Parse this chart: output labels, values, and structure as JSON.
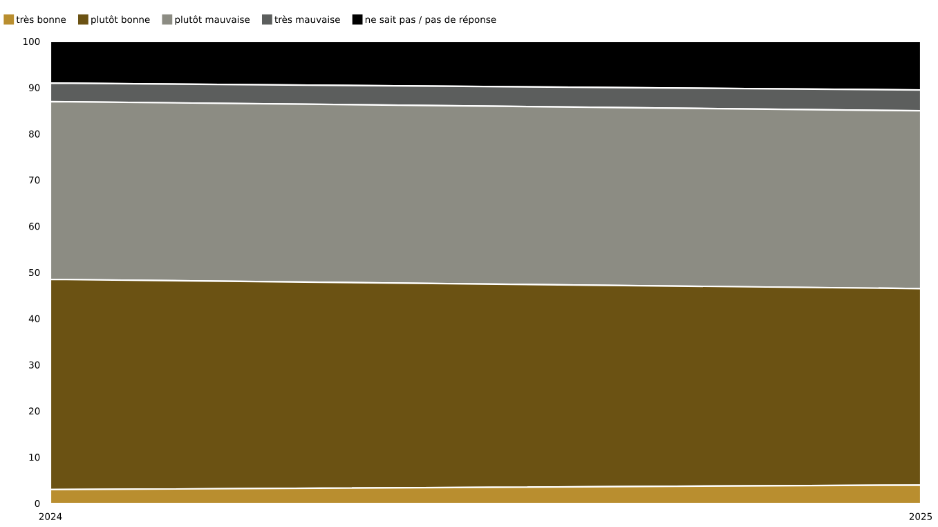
{
  "chart_data": {
    "type": "area",
    "stacked": true,
    "categories": [
      "2024",
      "2025"
    ],
    "series": [
      {
        "name": "très bonne",
        "color": "#b98e2f",
        "values": [
          3,
          4
        ]
      },
      {
        "name": "plutôt bonne",
        "color": "#6b5213",
        "values": [
          45.5,
          42.5
        ]
      },
      {
        "name": "plutôt mauvaise",
        "color": "#8c8c83",
        "values": [
          38.5,
          38.5
        ]
      },
      {
        "name": "très mauvaise",
        "color": "#5c5e5d",
        "values": [
          4,
          4.5
        ]
      },
      {
        "name": "ne sait pas / pas de réponse",
        "color": "#000000",
        "values": [
          9,
          10.5
        ]
      }
    ],
    "ylim": [
      0,
      100
    ],
    "yticks": [
      0,
      10,
      20,
      30,
      40,
      50,
      60,
      70,
      80,
      90,
      100
    ],
    "legend": "top left"
  }
}
